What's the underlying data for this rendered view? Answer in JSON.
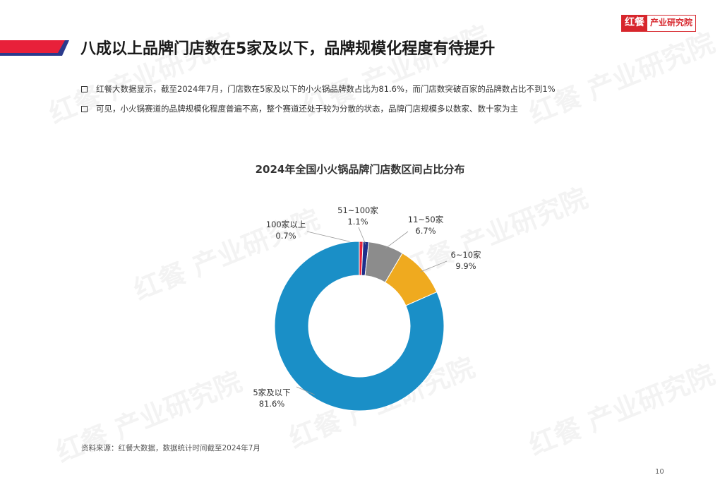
{
  "header": {
    "logo_mark": "红餐",
    "logo_text": "产业研究院",
    "title": "八成以上品牌门店数在5家及以下，品牌规模化程度有待提升"
  },
  "bullets": [
    "红餐大数据显示，截至2024年7月，门店数在5家及以下的小火锅品牌数占比为81.6%，而门店数突破百家的品牌数占比不到1%",
    "可见，小火锅赛道的品牌规模化程度普遍不高，整个赛道还处于较为分散的状态，品牌门店规模多以数家、数十家为主"
  ],
  "chart_data": {
    "type": "pie",
    "donut": true,
    "title": "2024年全国小火锅品牌门店数区间占比分布",
    "unit": "%",
    "slices": [
      {
        "label": "100家以上",
        "value": 0.7,
        "display": "0.7%",
        "color": "#e8203a"
      },
      {
        "label": "51~100家",
        "value": 1.1,
        "display": "1.1%",
        "color": "#1f2f8a"
      },
      {
        "label": "11~50家",
        "value": 6.7,
        "display": "6.7%",
        "color": "#8c8c8c"
      },
      {
        "label": "6~10家",
        "value": 9.9,
        "display": "9.9%",
        "color": "#efaa1f"
      },
      {
        "label": "5家及以下",
        "value": 81.6,
        "display": "81.6%",
        "color": "#1a8fc7"
      }
    ]
  },
  "footer": {
    "source": "资料来源：红餐大数据，数据统计时间截至2024年7月",
    "page_number": "10"
  },
  "watermark_text": "红餐 产业研究院",
  "colors": {
    "brand_red": "#d7262c",
    "title_navy": "#2b3a8c"
  }
}
